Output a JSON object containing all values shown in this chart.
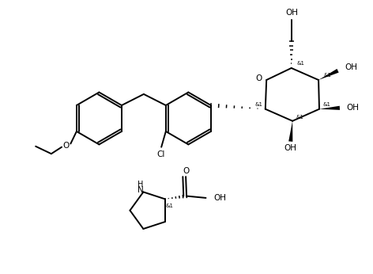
{
  "bg_color": "#ffffff",
  "lc": "#000000",
  "lw": 1.4,
  "fs": 7.0,
  "fs_small": 5.0,
  "fig_w": 4.72,
  "fig_h": 3.46,
  "xlim": [
    0,
    10
  ],
  "ylim": [
    0,
    7.3
  ]
}
